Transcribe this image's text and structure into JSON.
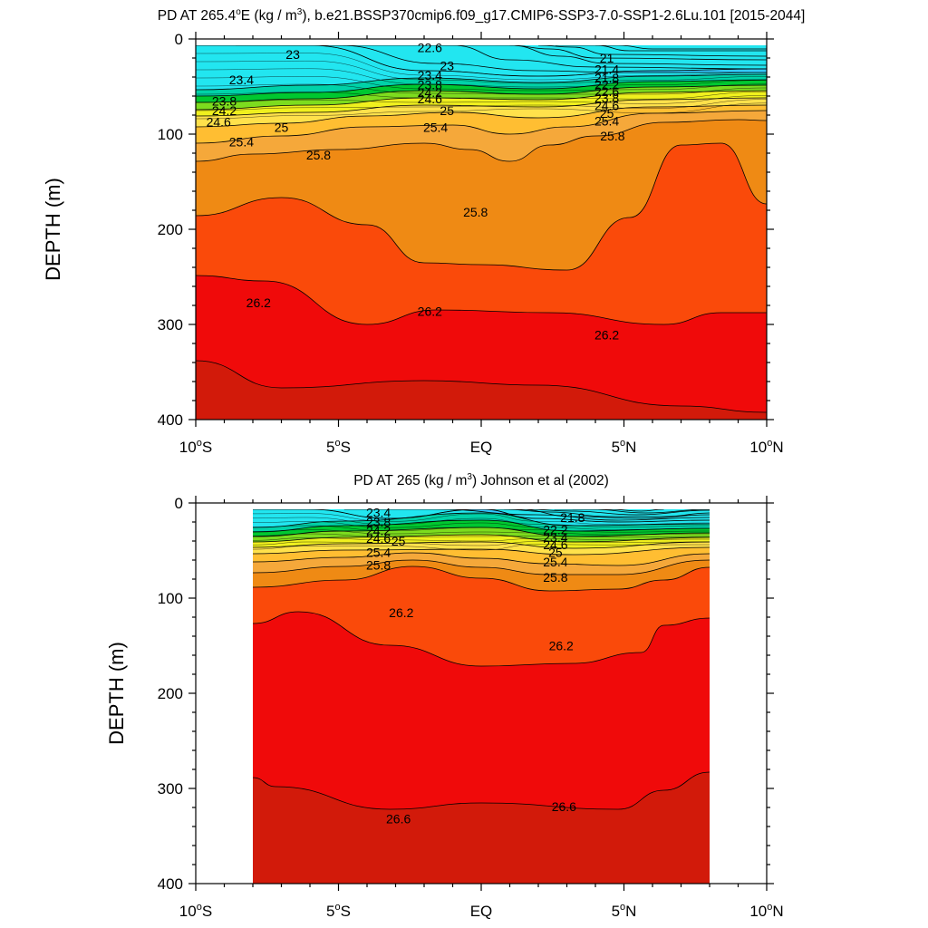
{
  "chart_data": [
    {
      "type": "contour",
      "title": "PD AT 265.4",
      "title_degree": "o",
      "title_after_degree": "E (kg / m",
      "title_exponent": "3",
      "title_suffix": "), b.e21.BSSP370cmip6.f09_g17.CMIP6-SSP3-7.0-SSP1-2.6Lu.101 [2015-2044]",
      "ylabel": "DEPTH (m)",
      "x_range": [
        -10,
        10
      ],
      "y_range": [
        0,
        400
      ],
      "y_inverted": true,
      "x_ticks": [
        {
          "value": -10,
          "label": "10",
          "deg": "o",
          "hemi": "S"
        },
        {
          "value": -5,
          "label": "5",
          "deg": "o",
          "hemi": "S"
        },
        {
          "value": 0,
          "label": "EQ",
          "deg": "",
          "hemi": ""
        },
        {
          "value": 5,
          "label": "5",
          "deg": "o",
          "hemi": "N"
        },
        {
          "value": 10,
          "label": "10",
          "deg": "o",
          "hemi": "N"
        }
      ],
      "y_ticks": [
        0,
        100,
        200,
        300,
        400
      ],
      "data_extent": [
        -10,
        10
      ],
      "labeled_contours": [
        {
          "x": -6.6,
          "y": 16,
          "text": "23"
        },
        {
          "x": -1.8,
          "y": 9,
          "text": "22.6"
        },
        {
          "x": -8.4,
          "y": 43,
          "text": "23.4"
        },
        {
          "x": -1.2,
          "y": 28,
          "text": "23"
        },
        {
          "x": -1.8,
          "y": 38,
          "text": "23.4"
        },
        {
          "x": -1.8,
          "y": 48,
          "text": "23.8"
        },
        {
          "x": -1.8,
          "y": 56,
          "text": "24.2"
        },
        {
          "x": -1.8,
          "y": 63,
          "text": "24.6"
        },
        {
          "x": -9.0,
          "y": 65,
          "text": "23.8"
        },
        {
          "x": -9.0,
          "y": 75,
          "text": "24.2"
        },
        {
          "x": -9.2,
          "y": 87,
          "text": "24.6"
        },
        {
          "x": -7.0,
          "y": 93,
          "text": "25"
        },
        {
          "x": -1.2,
          "y": 75,
          "text": "25"
        },
        {
          "x": -1.6,
          "y": 93,
          "text": "25.4"
        },
        {
          "x": -8.4,
          "y": 108,
          "text": "25.4"
        },
        {
          "x": -5.7,
          "y": 122,
          "text": "25.8"
        },
        {
          "x": -0.2,
          "y": 182,
          "text": "25.8"
        },
        {
          "x": 4.6,
          "y": 102,
          "text": "25.8"
        },
        {
          "x": 4.4,
          "y": 20,
          "text": "21"
        },
        {
          "x": 4.4,
          "y": 32,
          "text": "21.4"
        },
        {
          "x": 4.4,
          "y": 41,
          "text": "21.8"
        },
        {
          "x": 4.4,
          "y": 48,
          "text": "22.2"
        },
        {
          "x": 4.4,
          "y": 55,
          "text": "22.6"
        },
        {
          "x": 4.4,
          "y": 62,
          "text": "23.8"
        },
        {
          "x": 4.4,
          "y": 70,
          "text": "24.6"
        },
        {
          "x": 4.4,
          "y": 78,
          "text": "25"
        },
        {
          "x": 4.4,
          "y": 86,
          "text": "25.4"
        },
        {
          "x": -7.8,
          "y": 277,
          "text": "26.2"
        },
        {
          "x": -1.8,
          "y": 286,
          "text": "26.2"
        },
        {
          "x": 4.4,
          "y": 311,
          "text": "26.2"
        }
      ]
    },
    {
      "type": "contour",
      "title": "PD AT 265 (kg / m",
      "title_exponent": "3",
      "title_suffix": ") Johnson et al (2002)",
      "ylabel": "DEPTH (m)",
      "x_range": [
        -10,
        10
      ],
      "y_range": [
        0,
        400
      ],
      "y_inverted": true,
      "x_ticks": [
        {
          "value": -10,
          "label": "10",
          "deg": "o",
          "hemi": "S"
        },
        {
          "value": -5,
          "label": "5",
          "deg": "o",
          "hemi": "S"
        },
        {
          "value": 0,
          "label": "EQ",
          "deg": "",
          "hemi": ""
        },
        {
          "value": 5,
          "label": "5",
          "deg": "o",
          "hemi": "N"
        },
        {
          "value": 10,
          "label": "10",
          "deg": "o",
          "hemi": "N"
        }
      ],
      "y_ticks": [
        0,
        100,
        200,
        300,
        400
      ],
      "data_extent": [
        -8,
        8
      ],
      "labeled_contours": [
        {
          "x": -3.6,
          "y": 10,
          "text": "23.4"
        },
        {
          "x": -3.6,
          "y": 20,
          "text": "23.8"
        },
        {
          "x": -3.6,
          "y": 29,
          "text": "24.2"
        },
        {
          "x": -3.6,
          "y": 37,
          "text": "24.6"
        },
        {
          "x": -2.9,
          "y": 40,
          "text": "25"
        },
        {
          "x": -3.6,
          "y": 52,
          "text": "25.4"
        },
        {
          "x": -3.6,
          "y": 65,
          "text": "25.8"
        },
        {
          "x": 3.2,
          "y": 15,
          "text": "21.8"
        },
        {
          "x": 2.6,
          "y": 28,
          "text": "22.2"
        },
        {
          "x": 2.6,
          "y": 36,
          "text": "23.4"
        },
        {
          "x": 2.6,
          "y": 44,
          "text": "24.6"
        },
        {
          "x": 2.6,
          "y": 52,
          "text": "25"
        },
        {
          "x": 2.6,
          "y": 62,
          "text": "25.4"
        },
        {
          "x": 2.6,
          "y": 78,
          "text": "25.8"
        },
        {
          "x": -2.8,
          "y": 115,
          "text": "26.2"
        },
        {
          "x": 2.8,
          "y": 150,
          "text": "26.2"
        },
        {
          "x": -2.9,
          "y": 332,
          "text": "26.6"
        },
        {
          "x": 2.9,
          "y": 319,
          "text": "26.6"
        }
      ]
    }
  ]
}
